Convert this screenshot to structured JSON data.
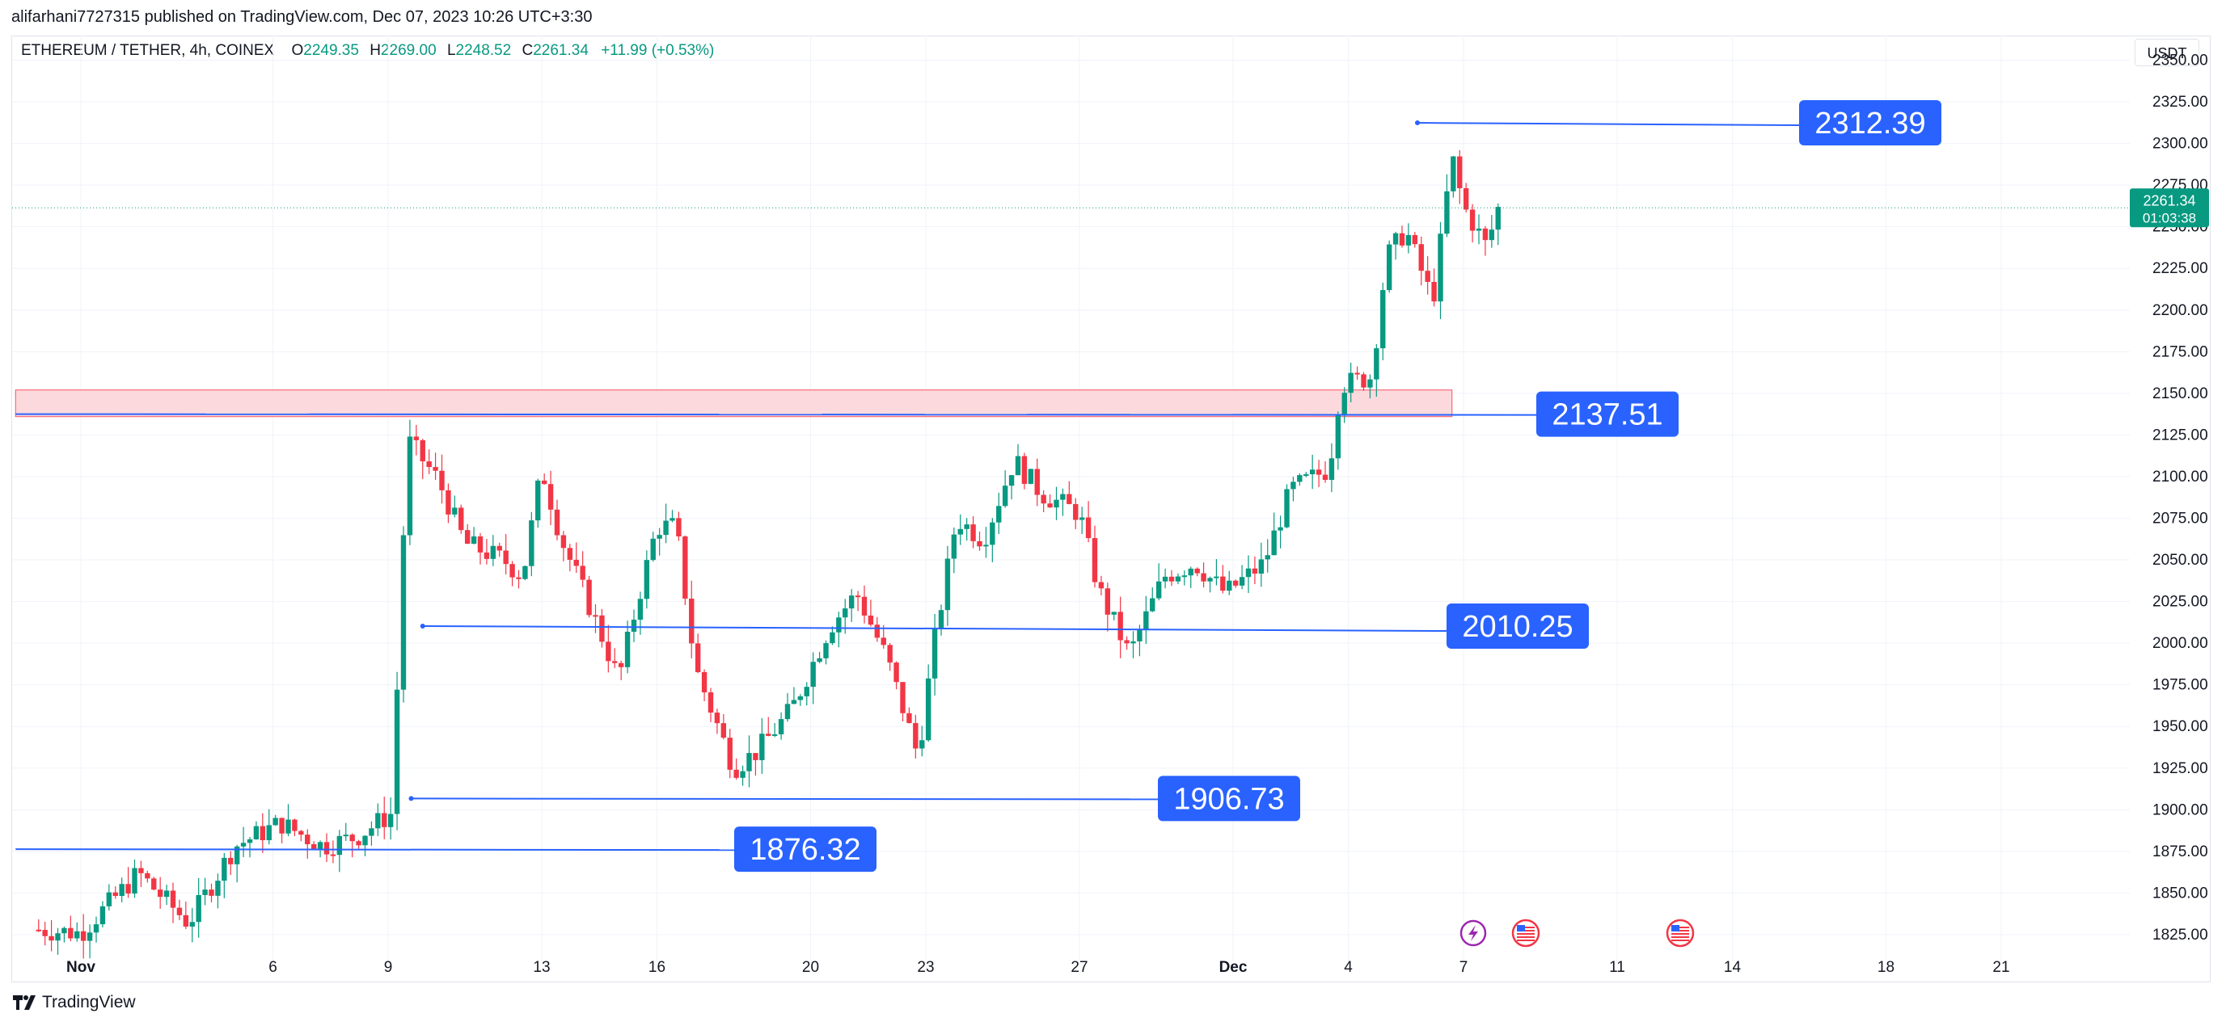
{
  "header": {
    "published_line": "alifarhani7727315 published on TradingView.com, Dec 07, 2023 10:26 UTC+3:30",
    "symbol": "ETHEREUM / TETHER, 4h, COINEX",
    "o_label": "O",
    "o_value": "2249.35",
    "h_label": "H",
    "h_value": "2269.00",
    "l_label": "L",
    "l_value": "2248.52",
    "c_label": "C",
    "c_value": "2261.34",
    "change": "+11.99 (+0.53%)",
    "currency": "USDT"
  },
  "footer": {
    "brand": "TradingView"
  },
  "price_tag": {
    "price": "2261.34",
    "countdown": "01:03:38"
  },
  "colors": {
    "up": "#089981",
    "down": "#f23645",
    "hline": "#2962ff",
    "label_bg": "#2962ff",
    "zone_fill": "#fcd9dd",
    "zone_border": "#f7525f",
    "grid": "#f0f3fa",
    "axis_text": "#131722"
  },
  "events": [
    {
      "icon": "lightning-icon",
      "x_date": "Dec 7"
    },
    {
      "icon": "us-flag-icon",
      "x_date": "Dec 8"
    },
    {
      "icon": "us-flag-icon",
      "x_date": "Dec 12"
    }
  ],
  "chart_data": {
    "type": "candlestick",
    "interval": "4h",
    "y_axis": {
      "side": "right",
      "ylim": [
        1808,
        2358
      ],
      "ticks": [
        1825,
        1850,
        1875,
        1900,
        1925,
        1950,
        1975,
        2000,
        2025,
        2050,
        2075,
        2100,
        2125,
        2150,
        2175,
        2200,
        2225,
        2250,
        2275,
        2300,
        2325,
        2350
      ]
    },
    "x_axis": {
      "ticks": [
        {
          "label": "Nov",
          "day": 1,
          "bold": true
        },
        {
          "label": "6",
          "day": 6
        },
        {
          "label": "9",
          "day": 9
        },
        {
          "label": "13",
          "day": 13
        },
        {
          "label": "16",
          "day": 16
        },
        {
          "label": "20",
          "day": 20
        },
        {
          "label": "23",
          "day": 23
        },
        {
          "label": "27",
          "day": 27
        },
        {
          "label": "Dec",
          "day": 31,
          "bold": true
        },
        {
          "label": "4",
          "day": 34
        },
        {
          "label": "7",
          "day": 37
        },
        {
          "label": "11",
          "day": 41
        },
        {
          "label": "14",
          "day": 44
        },
        {
          "label": "18",
          "day": 48
        },
        {
          "label": "21",
          "day": 51
        }
      ]
    },
    "horizontal_lines": [
      {
        "label": "2312.39",
        "y": 2312.39,
        "from_day": 35.8
      },
      {
        "label": "2137.51",
        "y": 2137.51,
        "from_day": -0.7
      },
      {
        "label": "2010.25",
        "y": 2010.25,
        "from_day": 9.9
      },
      {
        "label": "1906.73",
        "y": 1906.73,
        "from_day": 9.6
      },
      {
        "label": "1876.32",
        "y": 1876.32,
        "from_day": -0.7
      }
    ],
    "zone": {
      "y_low": 2136,
      "y_high": 2152,
      "from_day": -0.7,
      "to_day": 36.7
    },
    "anchors": [
      {
        "day": -0.1,
        "price": 1828
      },
      {
        "day": 1.0,
        "price": 1826
      },
      {
        "day": 2.5,
        "price": 1862
      },
      {
        "day": 3.8,
        "price": 1832
      },
      {
        "day": 5.0,
        "price": 1878
      },
      {
        "day": 6.2,
        "price": 1892
      },
      {
        "day": 7.3,
        "price": 1878
      },
      {
        "day": 8.2,
        "price": 1884
      },
      {
        "day": 9.1,
        "price": 1898
      },
      {
        "day": 9.5,
        "price": 2122
      },
      {
        "day": 10.3,
        "price": 2098
      },
      {
        "day": 11.0,
        "price": 2060
      },
      {
        "day": 12.0,
        "price": 2050
      },
      {
        "day": 12.5,
        "price": 2040
      },
      {
        "day": 13.0,
        "price": 2105
      },
      {
        "day": 13.5,
        "price": 2063
      },
      {
        "day": 14.5,
        "price": 2008
      },
      {
        "day": 15.0,
        "price": 1978
      },
      {
        "day": 15.5,
        "price": 2026
      },
      {
        "day": 16.0,
        "price": 2070
      },
      {
        "day": 16.5,
        "price": 2070
      },
      {
        "day": 17.0,
        "price": 1985
      },
      {
        "day": 18.0,
        "price": 1925
      },
      {
        "day": 18.6,
        "price": 1935
      },
      {
        "day": 19.5,
        "price": 1960
      },
      {
        "day": 20.5,
        "price": 2010
      },
      {
        "day": 21.2,
        "price": 2030
      },
      {
        "day": 22.0,
        "price": 1990
      },
      {
        "day": 22.8,
        "price": 1932
      },
      {
        "day": 23.2,
        "price": 1998
      },
      {
        "day": 23.8,
        "price": 2075
      },
      {
        "day": 24.5,
        "price": 2062
      },
      {
        "day": 25.3,
        "price": 2110
      },
      {
        "day": 26.0,
        "price": 2090
      },
      {
        "day": 27.0,
        "price": 2078
      },
      {
        "day": 27.5,
        "price": 2032
      },
      {
        "day": 28.3,
        "price": 1993
      },
      {
        "day": 29.2,
        "price": 2040
      },
      {
        "day": 30.0,
        "price": 2048
      },
      {
        "day": 30.8,
        "price": 2030
      },
      {
        "day": 31.8,
        "price": 2048
      },
      {
        "day": 32.5,
        "price": 2092
      },
      {
        "day": 33.5,
        "price": 2105
      },
      {
        "day": 33.8,
        "price": 2155
      },
      {
        "day": 34.6,
        "price": 2160
      },
      {
        "day": 35.0,
        "price": 2232
      },
      {
        "day": 35.5,
        "price": 2248
      },
      {
        "day": 36.2,
        "price": 2205
      },
      {
        "day": 36.7,
        "price": 2292
      },
      {
        "day": 37.0,
        "price": 2262
      },
      {
        "day": 37.6,
        "price": 2238
      },
      {
        "day": 37.9,
        "price": 2261
      }
    ]
  }
}
